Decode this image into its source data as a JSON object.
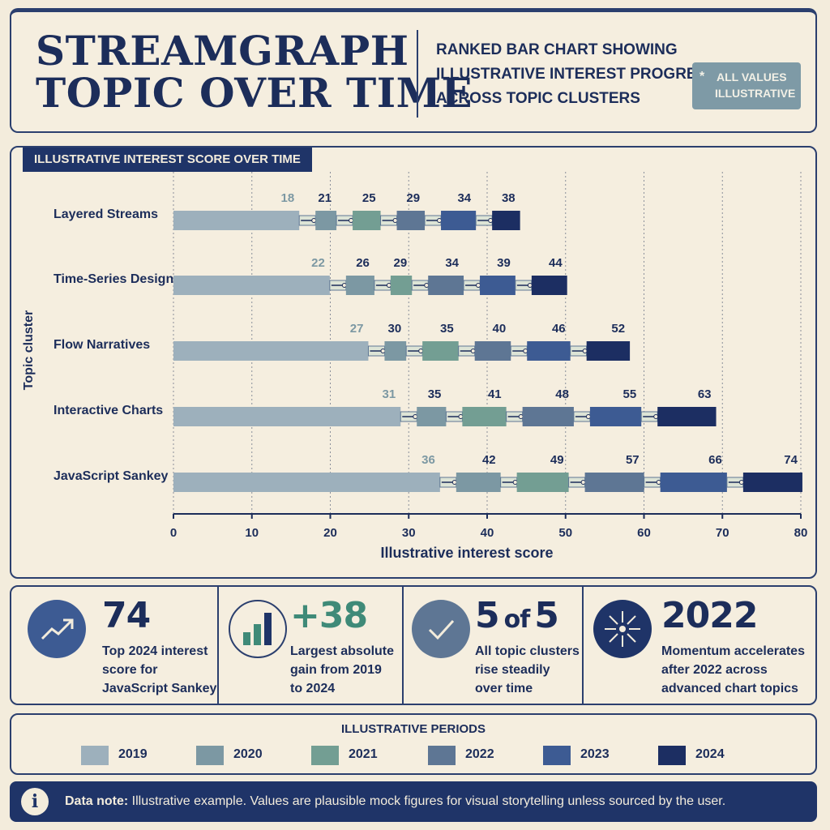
{
  "header": {
    "title_lines": [
      "STREAMGRAPH",
      "TOPIC OVER TIME"
    ],
    "subtitle_lines": [
      "RANKED BAR CHART SHOWING",
      "ILLUSTRATIVE INTEREST PROGRESS",
      "ACROSS TOPIC CLUSTERS"
    ],
    "badge_star": "*",
    "badge_lines": [
      "ALL VALUES",
      "ILLUSTRATIVE"
    ]
  },
  "chart_panel": {
    "tag": "ILLUSTRATIVE INTEREST SCORE OVER TIME"
  },
  "chart_data": {
    "type": "bar",
    "title": "ILLUSTRATIVE INTEREST SCORE OVER TIME",
    "xlabel": "Illustrative interest score",
    "ylabel": "Topic cluster",
    "xlim": [
      0,
      80
    ],
    "xticks": [
      0,
      10,
      20,
      30,
      40,
      50,
      60,
      70,
      80
    ],
    "periods": [
      "2019",
      "2020",
      "2021",
      "2022",
      "2023",
      "2024"
    ],
    "colors": [
      "#9db0bc",
      "#7c98a3",
      "#739e93",
      "#5e7694",
      "#3d5b93",
      "#1c2e62"
    ],
    "categories": [
      "Layered Streams",
      "Time-Series Design",
      "Flow Narratives",
      "Interactive Charts",
      "JavaScript Sankey"
    ],
    "series": [
      {
        "name": "2019",
        "values": [
          18,
          22,
          27,
          31,
          36
        ]
      },
      {
        "name": "2020",
        "values": [
          21,
          26,
          30,
          35,
          42
        ]
      },
      {
        "name": "2021",
        "values": [
          25,
          29,
          35,
          41,
          49
        ]
      },
      {
        "name": "2022",
        "values": [
          29,
          34,
          40,
          48,
          57
        ]
      },
      {
        "name": "2023",
        "values": [
          34,
          39,
          46,
          55,
          66
        ]
      },
      {
        "name": "2024",
        "values": [
          38,
          44,
          52,
          63,
          74
        ]
      }
    ],
    "grid": "vertical dotted",
    "legend": "bottom"
  },
  "stats": [
    {
      "value": "74",
      "desc": "Top 2024 interest score for JavaScript Sankey",
      "icon": "trend-up-icon"
    },
    {
      "value": "+38",
      "desc": "Largest absolute gain from 2019 to 2024",
      "icon": "bar-chart-icon"
    },
    {
      "value_main": "5",
      "value_mid": "of",
      "value_end": "5",
      "desc": "All topic clusters rise steadily over time",
      "icon": "check-icon"
    },
    {
      "value": "2022",
      "desc": "Momentum accelerates after 2022 across advanced chart topics",
      "icon": "burst-icon"
    }
  ],
  "legend": {
    "title": "ILLUSTRATIVE PERIODS",
    "items": [
      "2019",
      "2020",
      "2021",
      "2022",
      "2023",
      "2024"
    ]
  },
  "note": {
    "label": "Data note:",
    "text": " Illustrative example. Values are plausible mock figures for visual storytelling unless sourced by the user.",
    "icon": "i"
  }
}
